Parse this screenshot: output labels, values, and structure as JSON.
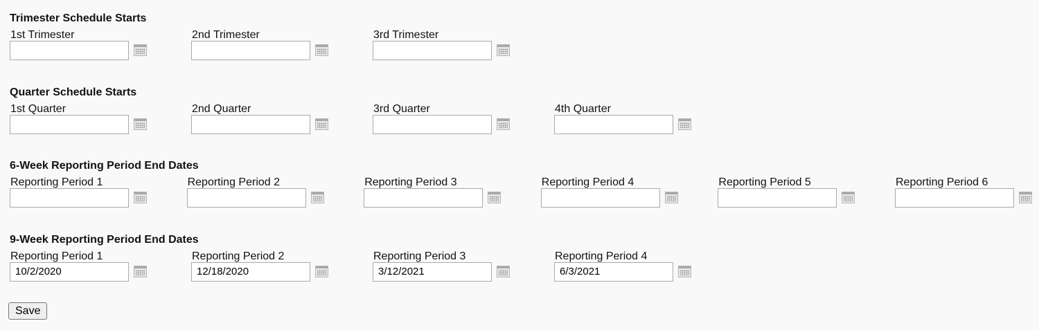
{
  "sections": [
    {
      "title": "Trimester Schedule Starts",
      "fields": [
        {
          "label": "1st Trimester",
          "value": ""
        },
        {
          "label": "2nd Trimester",
          "value": ""
        },
        {
          "label": "3rd Trimester",
          "value": ""
        }
      ]
    },
    {
      "title": "Quarter Schedule Starts",
      "fields": [
        {
          "label": "1st Quarter",
          "value": ""
        },
        {
          "label": "2nd Quarter",
          "value": ""
        },
        {
          "label": "3rd Quarter",
          "value": ""
        },
        {
          "label": "4th Quarter",
          "value": ""
        }
      ]
    },
    {
      "title": "6-Week Reporting Period End Dates",
      "fields": [
        {
          "label": "Reporting Period 1",
          "value": ""
        },
        {
          "label": "Reporting Period 2",
          "value": ""
        },
        {
          "label": "Reporting Period 3",
          "value": ""
        },
        {
          "label": "Reporting Period 4",
          "value": ""
        },
        {
          "label": "Reporting Period 5",
          "value": ""
        },
        {
          "label": "Reporting Period 6",
          "value": ""
        }
      ]
    },
    {
      "title": "9-Week Reporting Period End Dates",
      "fields": [
        {
          "label": "Reporting Period 1",
          "value": "10/2/2020"
        },
        {
          "label": "Reporting Period 2",
          "value": "12/18/2020"
        },
        {
          "label": "Reporting Period 3",
          "value": "3/12/2021"
        },
        {
          "label": "Reporting Period 4",
          "value": "6/3/2021"
        }
      ]
    }
  ],
  "save_label": "Save"
}
